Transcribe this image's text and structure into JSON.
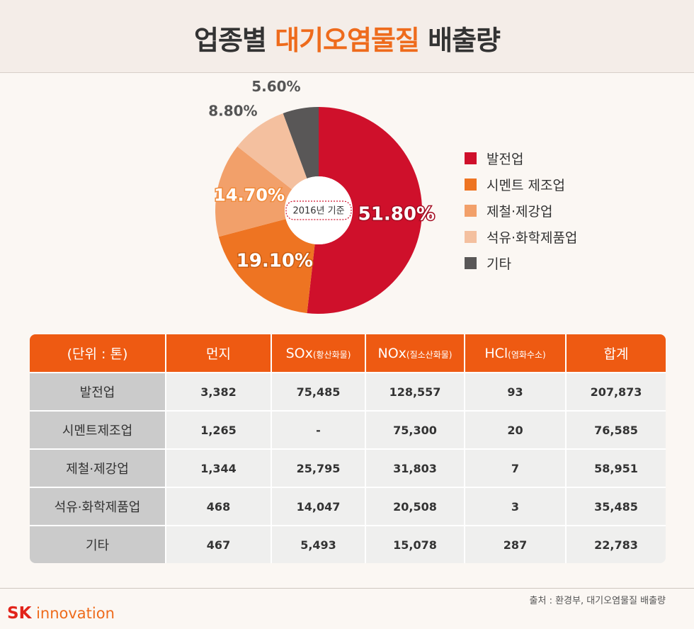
{
  "title": {
    "prefix": "업종별 ",
    "accent": "대기오염물질",
    "suffix": " 배출량"
  },
  "chart_data": {
    "type": "pie",
    "subtype": "donut",
    "center_label": "2016년 기준",
    "categories": [
      "발전업",
      "시멘트 제조업",
      "제철·제강업",
      "석유·화학제품업",
      "기타"
    ],
    "values": [
      51.8,
      19.1,
      14.7,
      8.8,
      5.6
    ],
    "labels": [
      "51.80%",
      "19.10%",
      "14.70%",
      "8.80%",
      "5.60%"
    ],
    "colors": [
      "#cf102b",
      "#ee7422",
      "#f2a06a",
      "#f4c09f",
      "#595757"
    ],
    "legend_position": "right"
  },
  "table": {
    "headers": [
      {
        "main": "(단위 : 톤)",
        "sub": ""
      },
      {
        "main": "먼지",
        "sub": ""
      },
      {
        "main": "SOx",
        "sub": "(황산화물)"
      },
      {
        "main": "NOx",
        "sub": "(질소산화물)"
      },
      {
        "main": "HCl",
        "sub": "(염화수소)"
      },
      {
        "main": "합계",
        "sub": ""
      }
    ],
    "rows": [
      [
        "발전업",
        "3,382",
        "75,485",
        "128,557",
        "93",
        "207,873"
      ],
      [
        "시멘트제조업",
        "1,265",
        "-",
        "75,300",
        "20",
        "76,585"
      ],
      [
        "제철·제강업",
        "1,344",
        "25,795",
        "31,803",
        "7",
        "58,951"
      ],
      [
        "석유·화학제품업",
        "468",
        "14,047",
        "20,508",
        "3",
        "35,485"
      ],
      [
        "기타",
        "467",
        "5,493",
        "15,078",
        "287",
        "22,783"
      ]
    ]
  },
  "source": "출처 :  환경부, 대기오염물질 배출량",
  "logo": {
    "sk": "SK",
    "name": "innovation"
  }
}
